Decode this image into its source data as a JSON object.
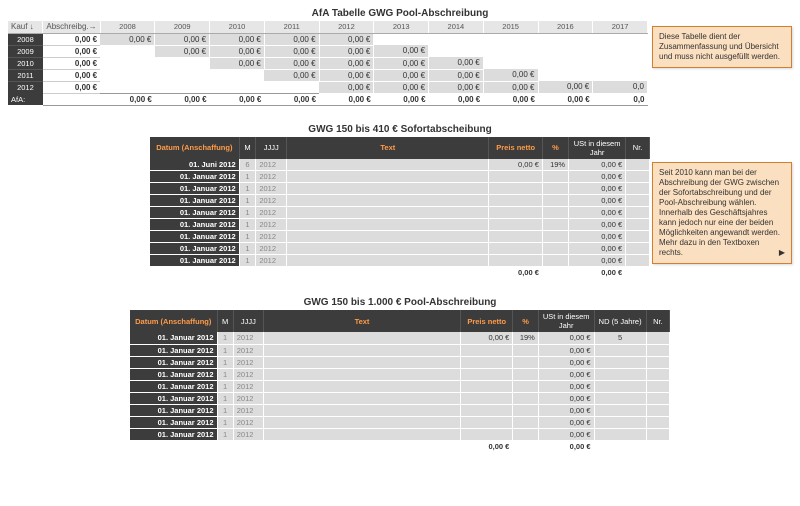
{
  "afa": {
    "title": "AfA Tabelle GWG Pool-Abschreibung",
    "head": {
      "kauf": "Kauf ↓",
      "ab": "Abschreibg.→"
    },
    "years": [
      "2008",
      "2009",
      "2010",
      "2011",
      "2012",
      "2013",
      "2014",
      "2015",
      "2016",
      "2017"
    ],
    "rows": [
      {
        "year": "2008",
        "ab": "0,00 €",
        "cells": [
          "0,00 €",
          "0,00 €",
          "0,00 €",
          "0,00 €",
          "0,00 €",
          "",
          "",
          "",
          "",
          ""
        ]
      },
      {
        "year": "2009",
        "ab": "0,00 €",
        "cells": [
          "",
          "0,00 €",
          "0,00 €",
          "0,00 €",
          "0,00 €",
          "0,00 €",
          "",
          "",
          "",
          ""
        ]
      },
      {
        "year": "2010",
        "ab": "0,00 €",
        "cells": [
          "",
          "",
          "0,00 €",
          "0,00 €",
          "0,00 €",
          "0,00 €",
          "0,00 €",
          "",
          "",
          ""
        ]
      },
      {
        "year": "2011",
        "ab": "0,00 €",
        "cells": [
          "",
          "",
          "",
          "0,00 €",
          "0,00 €",
          "0,00 €",
          "0,00 €",
          "0,00 €",
          "",
          ""
        ]
      },
      {
        "year": "2012",
        "ab": "0,00 €",
        "cells": [
          "",
          "",
          "",
          "",
          "0,00 €",
          "0,00 €",
          "0,00 €",
          "0,00 €",
          "0,00 €",
          "0,0"
        ]
      }
    ],
    "footer": {
      "label": "AfA:",
      "sums": [
        "0,00 €",
        "0,00 €",
        "0,00 €",
        "0,00 €",
        "0,00 €",
        "0,00 €",
        "0,00 €",
        "0,00 €",
        "0,00 €",
        "0,0"
      ]
    },
    "callout": "Diese Tabelle dient der Zusammenfassung und Übersicht und muss nicht ausgefüllt werden."
  },
  "t1": {
    "title": "GWG 150 bis 410 € Sofortabscheibung",
    "head": {
      "datum": "Datum (Anschaffung)",
      "m": "M",
      "jjjj": "JJJJ",
      "text": "Text",
      "preis": "Preis netto",
      "pct": "%",
      "ust": "USt in diesem Jahr",
      "nr": "Nr."
    },
    "rows": [
      {
        "date": "01. Juni 2012",
        "m": "6",
        "jjjj": "2012",
        "preis": "0,00 €",
        "pct": "19%",
        "ust": "0,00 €"
      },
      {
        "date": "01. Januar 2012",
        "m": "1",
        "jjjj": "2012",
        "preis": "",
        "pct": "",
        "ust": "0,00 €"
      },
      {
        "date": "01. Januar 2012",
        "m": "1",
        "jjjj": "2012",
        "preis": "",
        "pct": "",
        "ust": "0,00 €"
      },
      {
        "date": "01. Januar 2012",
        "m": "1",
        "jjjj": "2012",
        "preis": "",
        "pct": "",
        "ust": "0,00 €"
      },
      {
        "date": "01. Januar 2012",
        "m": "1",
        "jjjj": "2012",
        "preis": "",
        "pct": "",
        "ust": "0,00 €"
      },
      {
        "date": "01. Januar 2012",
        "m": "1",
        "jjjj": "2012",
        "preis": "",
        "pct": "",
        "ust": "0,00 €"
      },
      {
        "date": "01. Januar 2012",
        "m": "1",
        "jjjj": "2012",
        "preis": "",
        "pct": "",
        "ust": "0,00 €"
      },
      {
        "date": "01. Januar 2012",
        "m": "1",
        "jjjj": "2012",
        "preis": "",
        "pct": "",
        "ust": "0,00 €"
      },
      {
        "date": "01. Januar 2012",
        "m": "1",
        "jjjj": "2012",
        "preis": "",
        "pct": "",
        "ust": "0,00 €"
      }
    ],
    "total": {
      "preis": "0,00 €",
      "ust": "0,00 €"
    },
    "callout": "Seit 2010 kann man bei der Abschreibung der GWG zwischen der Sofortabschreibung und der Pool-Abschreibung wählen. Innerhalb des Geschäftsjahres kann jedoch nur eine der beiden Möglichkeiten angewandt werden. Mehr dazu in den Textboxen rechts."
  },
  "t2": {
    "title": "GWG 150 bis 1.000 € Pool-Abschreibung",
    "head": {
      "datum": "Datum (Anschaffung)",
      "m": "M",
      "jjjj": "JJJJ",
      "text": "Text",
      "preis": "Preis netto",
      "pct": "%",
      "ust": "USt in diesem Jahr",
      "nd": "ND (5 Jahre)",
      "nr": "Nr."
    },
    "rows": [
      {
        "date": "01. Januar 2012",
        "m": "1",
        "jjjj": "2012",
        "preis": "0,00 €",
        "pct": "19%",
        "ust": "0,00 €",
        "nd": "5"
      },
      {
        "date": "01. Januar 2012",
        "m": "1",
        "jjjj": "2012",
        "preis": "",
        "pct": "",
        "ust": "0,00 €",
        "nd": ""
      },
      {
        "date": "01. Januar 2012",
        "m": "1",
        "jjjj": "2012",
        "preis": "",
        "pct": "",
        "ust": "0,00 €",
        "nd": ""
      },
      {
        "date": "01. Januar 2012",
        "m": "1",
        "jjjj": "2012",
        "preis": "",
        "pct": "",
        "ust": "0,00 €",
        "nd": ""
      },
      {
        "date": "01. Januar 2012",
        "m": "1",
        "jjjj": "2012",
        "preis": "",
        "pct": "",
        "ust": "0,00 €",
        "nd": ""
      },
      {
        "date": "01. Januar 2012",
        "m": "1",
        "jjjj": "2012",
        "preis": "",
        "pct": "",
        "ust": "0,00 €",
        "nd": ""
      },
      {
        "date": "01. Januar 2012",
        "m": "1",
        "jjjj": "2012",
        "preis": "",
        "pct": "",
        "ust": "0,00 €",
        "nd": ""
      },
      {
        "date": "01. Januar 2012",
        "m": "1",
        "jjjj": "2012",
        "preis": "",
        "pct": "",
        "ust": "0,00 €",
        "nd": ""
      },
      {
        "date": "01. Januar 2012",
        "m": "1",
        "jjjj": "2012",
        "preis": "",
        "pct": "",
        "ust": "0,00 €",
        "nd": ""
      }
    ],
    "total": {
      "preis": "0,00 €",
      "ust": "0,00 €"
    }
  }
}
